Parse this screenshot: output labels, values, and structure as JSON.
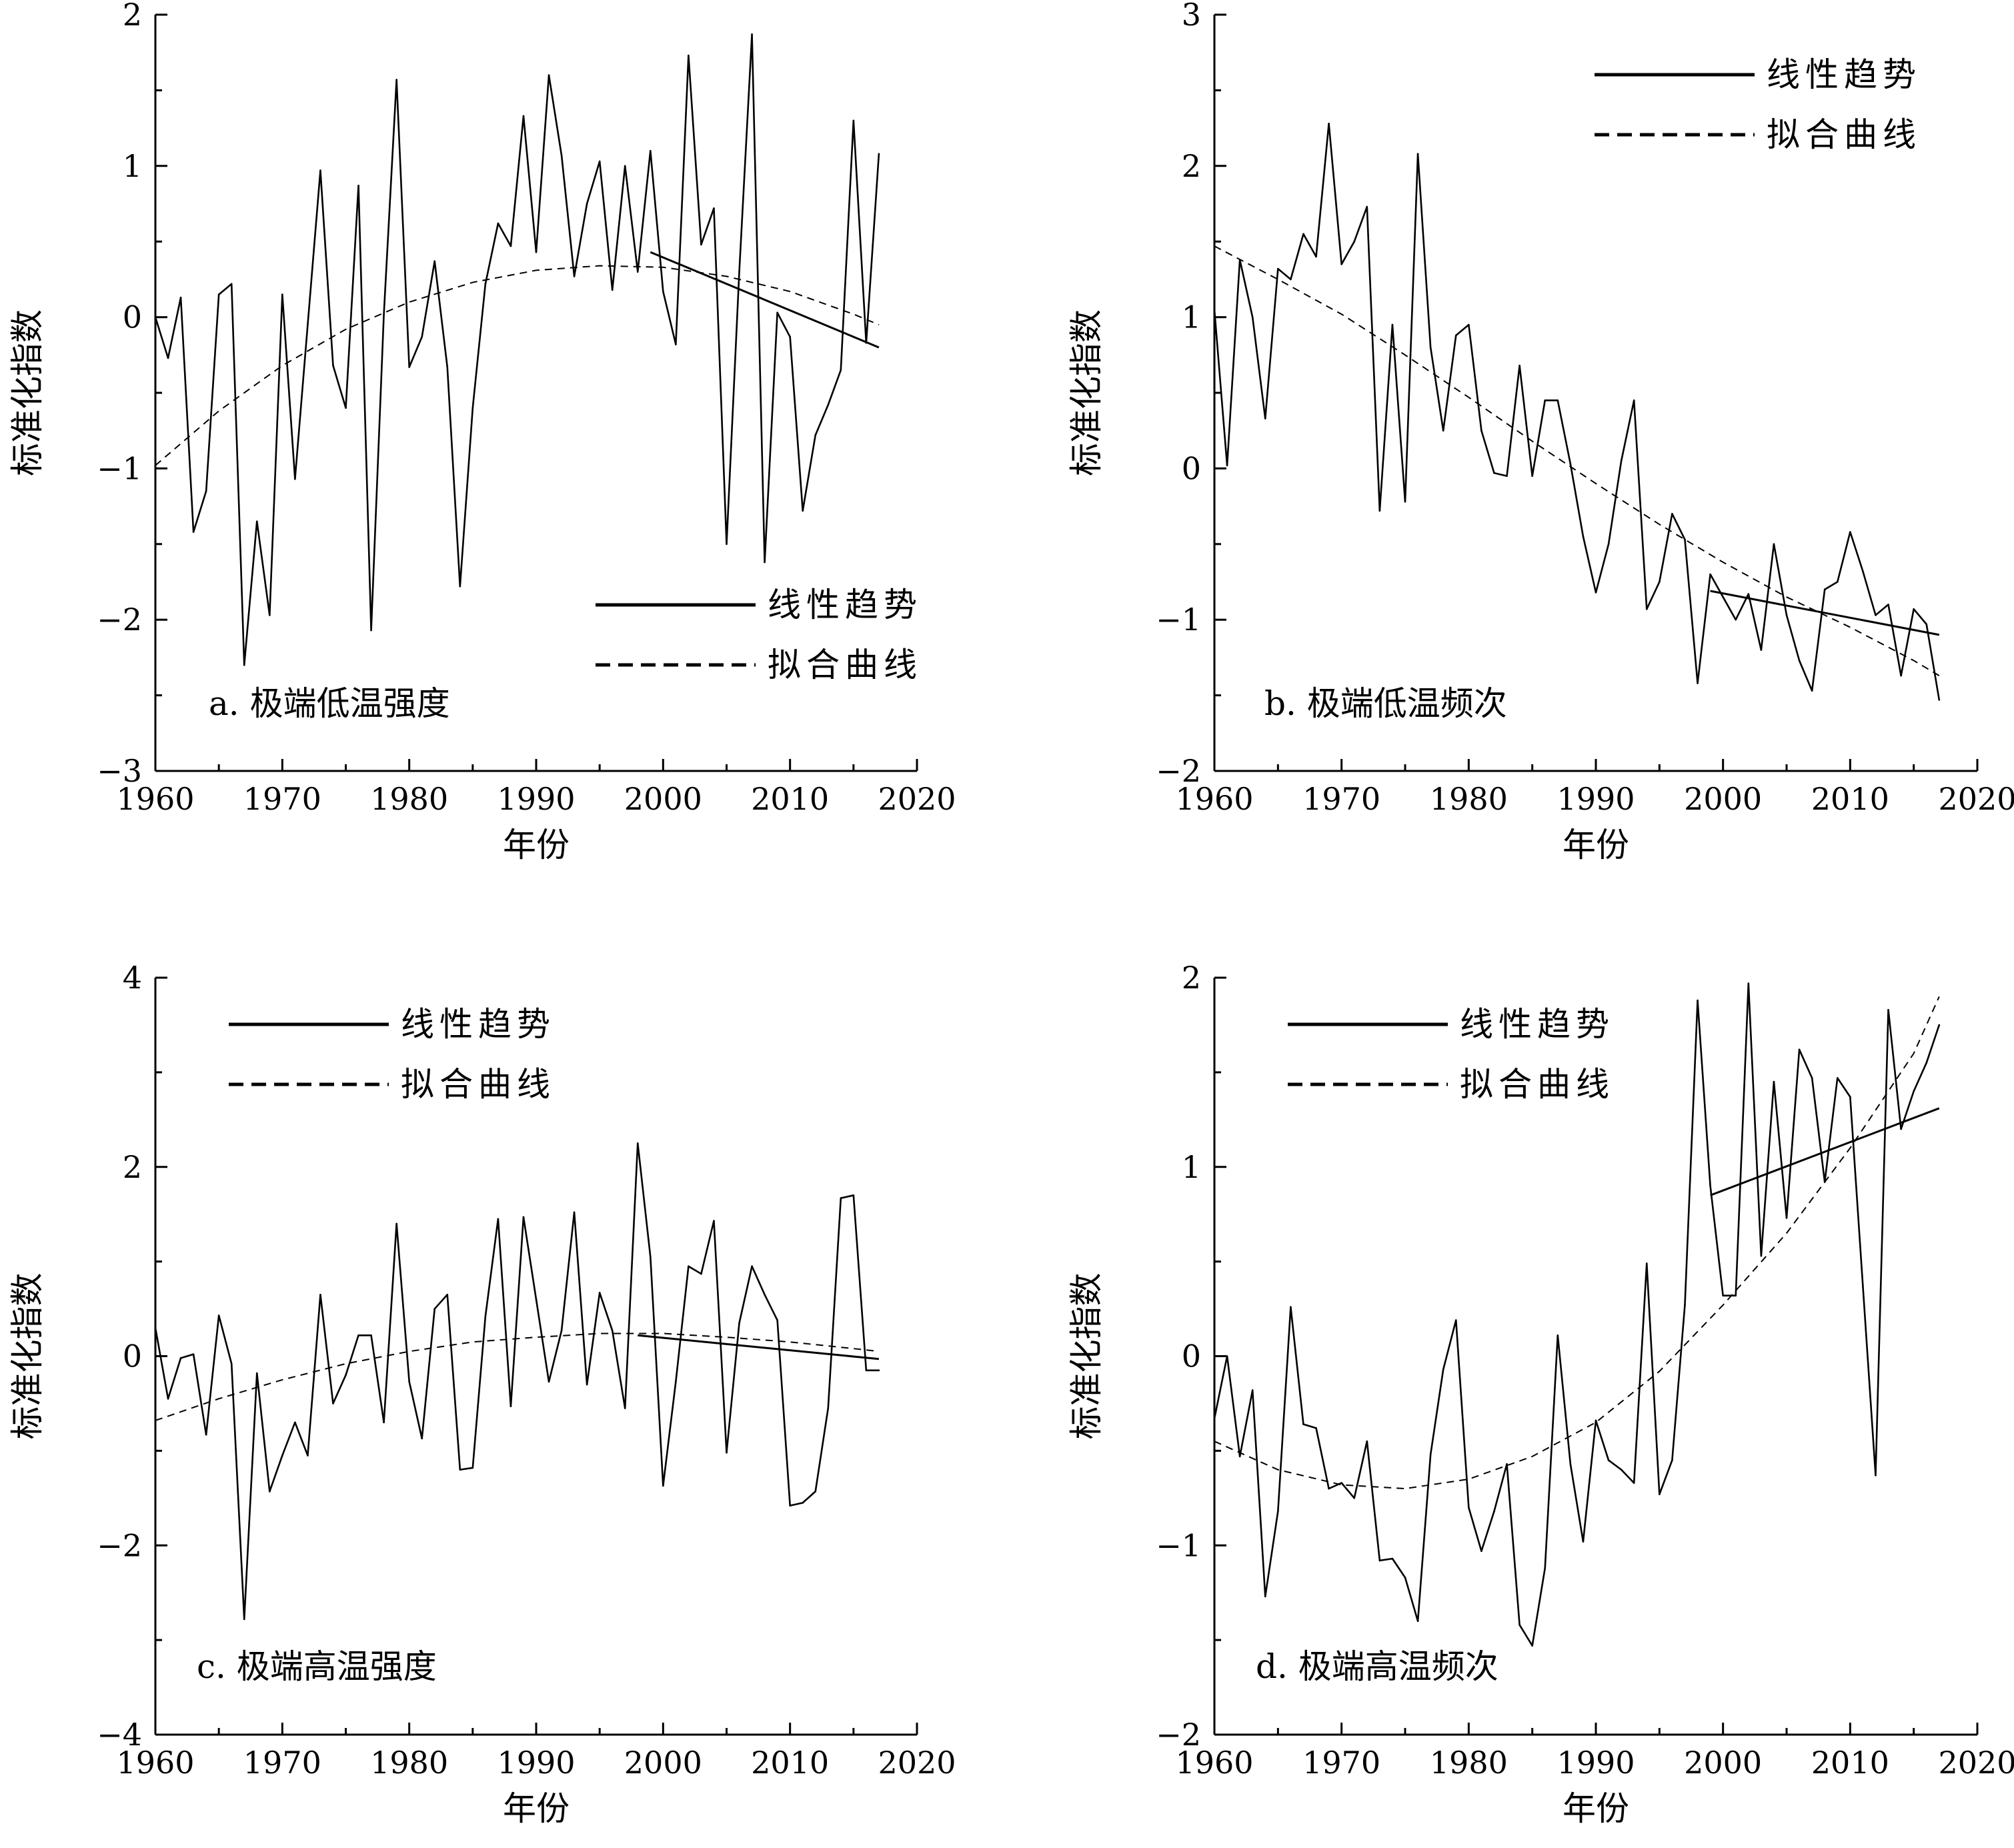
{
  "x_axis_label": "年份",
  "y_axis_label": "标准化指数",
  "legend": {
    "linear": "线性趋势",
    "fitted": "拟合曲线"
  },
  "chart_data": [
    {
      "type": "line",
      "panel_label": "a. 极端低温强度",
      "xlim": [
        1960,
        2020
      ],
      "ylim": [
        -3,
        2
      ],
      "xticks": [
        1960,
        1970,
        1980,
        1990,
        2000,
        2010,
        2020
      ],
      "xtick_labels": [
        "1960",
        "1970",
        "1980",
        "1990",
        "2000",
        "2010",
        "2020"
      ],
      "yticks": [
        -3,
        -2,
        -1,
        0,
        1,
        2
      ],
      "ytick_labels": [
        "−3",
        "−2",
        "−1",
        "0",
        "1",
        "2"
      ],
      "legend_position": "bottom-right",
      "x": [
        1960,
        1961,
        1962,
        1963,
        1964,
        1965,
        1966,
        1967,
        1968,
        1969,
        1970,
        1971,
        1972,
        1973,
        1974,
        1975,
        1976,
        1977,
        1978,
        1979,
        1980,
        1981,
        1982,
        1983,
        1984,
        1985,
        1986,
        1987,
        1988,
        1989,
        1990,
        1991,
        1992,
        1993,
        1994,
        1995,
        1996,
        1997,
        1998,
        1999,
        2000,
        2001,
        2002,
        2003,
        2004,
        2005,
        2006,
        2007,
        2008,
        2009,
        2010,
        2011,
        2012,
        2013,
        2014,
        2015,
        2016,
        2017
      ],
      "series": [
        {
          "values": [
            0.0,
            -0.27,
            0.13,
            -1.42,
            -1.15,
            0.15,
            0.22,
            -2.3,
            -1.35,
            -1.97,
            0.15,
            -1.07,
            -0.05,
            0.97,
            -0.32,
            -0.6,
            0.87,
            -2.07,
            0.02,
            1.57,
            -0.33,
            -0.13,
            0.37,
            -0.33,
            -1.78,
            -0.6,
            0.22,
            0.62,
            0.47,
            1.33,
            0.43,
            1.6,
            1.07,
            0.27,
            0.75,
            1.03,
            0.18,
            1.0,
            0.3,
            1.1,
            0.17,
            -0.18,
            1.73,
            0.48,
            0.72,
            -1.5,
            0.3,
            1.87,
            -1.62,
            0.03,
            -0.13,
            -1.28,
            -0.78,
            -0.58,
            -0.35,
            1.3,
            -0.17,
            1.08
          ]
        }
      ],
      "trend_line": {
        "x": [
          1999,
          2017
        ],
        "y": [
          0.43,
          -0.2
        ]
      },
      "fitted_curve": {
        "x": [
          1960,
          1965,
          1970,
          1975,
          1980,
          1985,
          1990,
          1995,
          2000,
          2005,
          2010,
          2015,
          2017
        ],
        "y": [
          -0.98,
          -0.62,
          -0.32,
          -0.08,
          0.1,
          0.23,
          0.31,
          0.34,
          0.33,
          0.27,
          0.17,
          0.02,
          -0.05
        ]
      }
    },
    {
      "type": "line",
      "panel_label": "b. 极端低温频次",
      "xlim": [
        1960,
        2020
      ],
      "ylim": [
        -2,
        3
      ],
      "xticks": [
        1960,
        1970,
        1980,
        1990,
        2000,
        2010,
        2020
      ],
      "xtick_labels": [
        "1960",
        "1970",
        "1980",
        "1990",
        "2000",
        "2010",
        "2020"
      ],
      "yticks": [
        -2,
        -1,
        0,
        1,
        2,
        3
      ],
      "ytick_labels": [
        "−2",
        "−1",
        "0",
        "1",
        "2",
        "3"
      ],
      "legend_position": "top-right",
      "x": [
        1960,
        1961,
        1962,
        1963,
        1964,
        1965,
        1966,
        1967,
        1968,
        1969,
        1970,
        1971,
        1972,
        1973,
        1974,
        1975,
        1976,
        1977,
        1978,
        1979,
        1980,
        1981,
        1982,
        1983,
        1984,
        1985,
        1986,
        1987,
        1988,
        1989,
        1990,
        1991,
        1992,
        1993,
        1994,
        1995,
        1996,
        1997,
        1998,
        1999,
        2000,
        2001,
        2002,
        2003,
        2004,
        2005,
        2006,
        2007,
        2008,
        2009,
        2010,
        2011,
        2012,
        2013,
        2014,
        2015,
        2016,
        2017
      ],
      "series": [
        {
          "values": [
            1.05,
            0.02,
            1.38,
            1.0,
            0.33,
            1.32,
            1.25,
            1.55,
            1.4,
            2.28,
            1.35,
            1.5,
            1.73,
            -0.28,
            0.95,
            -0.22,
            2.08,
            0.8,
            0.25,
            0.88,
            0.95,
            0.25,
            -0.03,
            -0.05,
            0.68,
            -0.05,
            0.45,
            0.45,
            0.03,
            -0.45,
            -0.82,
            -0.5,
            0.05,
            0.45,
            -0.93,
            -0.75,
            -0.3,
            -0.47,
            -1.42,
            -0.7,
            -0.85,
            -1.0,
            -0.83,
            -1.2,
            -0.5,
            -0.97,
            -1.27,
            -1.47,
            -0.8,
            -0.75,
            -0.42,
            -0.68,
            -0.97,
            -0.9,
            -1.37,
            -0.93,
            -1.03,
            -1.53
          ]
        }
      ],
      "trend_line": {
        "x": [
          1999,
          2017
        ],
        "y": [
          -0.81,
          -1.1
        ]
      },
      "fitted_curve": {
        "x": [
          1960,
          1965,
          1970,
          1975,
          1980,
          1985,
          1990,
          1995,
          2000,
          2005,
          2010,
          2015,
          2017
        ],
        "y": [
          1.47,
          1.25,
          1.02,
          0.75,
          0.47,
          0.18,
          -0.1,
          -0.37,
          -0.62,
          -0.85,
          -1.05,
          -1.27,
          -1.37
        ]
      }
    },
    {
      "type": "line",
      "panel_label": "c. 极端高温强度",
      "xlim": [
        1960,
        2020
      ],
      "ylim": [
        -4,
        4
      ],
      "xticks": [
        1960,
        1970,
        1980,
        1990,
        2000,
        2010,
        2020
      ],
      "xtick_labels": [
        "1960",
        "1970",
        "1980",
        "1990",
        "2000",
        "2010",
        "2020"
      ],
      "yticks": [
        -4,
        -2,
        0,
        2,
        4
      ],
      "ytick_labels": [
        "−4",
        "−2",
        "0",
        "2",
        "4"
      ],
      "legend_position": "top-left",
      "x": [
        1960,
        1961,
        1962,
        1963,
        1964,
        1965,
        1966,
        1967,
        1968,
        1969,
        1970,
        1971,
        1972,
        1973,
        1974,
        1975,
        1976,
        1977,
        1978,
        1979,
        1980,
        1981,
        1982,
        1983,
        1984,
        1985,
        1986,
        1987,
        1988,
        1989,
        1990,
        1991,
        1992,
        1993,
        1994,
        1995,
        1996,
        1997,
        1998,
        1999,
        2000,
        2001,
        2002,
        2003,
        2004,
        2005,
        2006,
        2007,
        2008,
        2009,
        2010,
        2011,
        2012,
        2013,
        2014,
        2015,
        2016,
        2017
      ],
      "series": [
        {
          "values": [
            0.3,
            -0.45,
            -0.02,
            0.02,
            -0.83,
            0.43,
            -0.08,
            -2.78,
            -0.18,
            -1.43,
            -1.05,
            -0.7,
            -1.05,
            0.65,
            -0.5,
            -0.2,
            0.22,
            0.22,
            -0.7,
            1.4,
            -0.27,
            -0.87,
            0.5,
            0.65,
            -1.2,
            -1.18,
            0.42,
            1.45,
            -0.53,
            1.47,
            0.6,
            -0.27,
            0.27,
            1.52,
            -0.3,
            0.67,
            0.27,
            -0.55,
            2.25,
            1.05,
            -1.37,
            -0.27,
            0.95,
            0.87,
            1.43,
            -1.02,
            0.35,
            0.95,
            0.65,
            0.38,
            -1.58,
            -1.55,
            -1.43,
            -0.55,
            1.67,
            1.7,
            -0.15,
            -0.15
          ]
        }
      ],
      "trend_line": {
        "x": [
          1998,
          2017
        ],
        "y": [
          0.22,
          -0.03
        ]
      },
      "fitted_curve": {
        "x": [
          1960,
          1965,
          1970,
          1975,
          1980,
          1985,
          1990,
          1995,
          2000,
          2005,
          2010,
          2015,
          2017
        ],
        "y": [
          -0.68,
          -0.45,
          -0.25,
          -0.08,
          0.05,
          0.15,
          0.2,
          0.24,
          0.24,
          0.2,
          0.15,
          0.08,
          0.05
        ]
      }
    },
    {
      "type": "line",
      "panel_label": "d. 极端高温频次",
      "xlim": [
        1960,
        2020
      ],
      "ylim": [
        -2,
        2
      ],
      "xticks": [
        1960,
        1970,
        1980,
        1990,
        2000,
        2010,
        2020
      ],
      "xtick_labels": [
        "1960",
        "1970",
        "1980",
        "1990",
        "2000",
        "2010",
        "2020"
      ],
      "yticks": [
        -2,
        -1,
        0,
        1,
        2
      ],
      "ytick_labels": [
        "−2",
        "−1",
        "0",
        "1",
        "2"
      ],
      "legend_position": "top-left",
      "x": [
        1960,
        1961,
        1962,
        1963,
        1964,
        1965,
        1966,
        1967,
        1968,
        1969,
        1970,
        1971,
        1972,
        1973,
        1974,
        1975,
        1976,
        1977,
        1978,
        1979,
        1980,
        1981,
        1982,
        1983,
        1984,
        1985,
        1986,
        1987,
        1988,
        1989,
        1990,
        1991,
        1992,
        1993,
        1994,
        1995,
        1996,
        1997,
        1998,
        1999,
        2000,
        2001,
        2002,
        2003,
        2004,
        2005,
        2006,
        2007,
        2008,
        2009,
        2010,
        2011,
        2012,
        2013,
        2014,
        2015,
        2016,
        2017
      ],
      "series": [
        {
          "values": [
            -0.33,
            0.0,
            -0.53,
            -0.18,
            -1.27,
            -0.82,
            0.26,
            -0.36,
            -0.38,
            -0.7,
            -0.67,
            -0.75,
            -0.45,
            -1.08,
            -1.07,
            -1.17,
            -1.4,
            -0.52,
            -0.07,
            0.19,
            -0.8,
            -1.03,
            -0.82,
            -0.57,
            -1.42,
            -1.53,
            -1.12,
            0.11,
            -0.57,
            -0.98,
            -0.34,
            -0.55,
            -0.6,
            -0.67,
            0.49,
            -0.73,
            -0.55,
            0.27,
            1.88,
            0.9,
            0.32,
            0.32,
            1.97,
            0.53,
            1.45,
            0.73,
            1.62,
            1.47,
            0.92,
            1.47,
            1.37,
            0.37,
            -0.63,
            1.83,
            1.2,
            1.4,
            1.55,
            1.75
          ]
        }
      ],
      "trend_line": {
        "x": [
          1999,
          2017
        ],
        "y": [
          0.85,
          1.31
        ]
      },
      "fitted_curve": {
        "x": [
          1960,
          1965,
          1970,
          1975,
          1980,
          1985,
          1990,
          1995,
          2000,
          2005,
          2010,
          2015,
          2017
        ],
        "y": [
          -0.45,
          -0.6,
          -0.68,
          -0.7,
          -0.65,
          -0.53,
          -0.35,
          -0.08,
          0.27,
          0.65,
          1.1,
          1.6,
          1.9
        ]
      }
    }
  ]
}
